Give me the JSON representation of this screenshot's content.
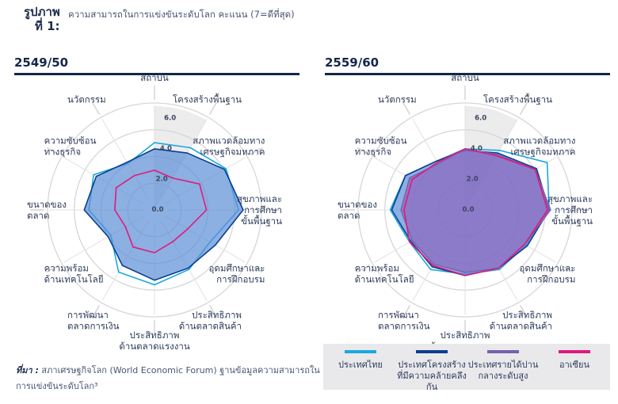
{
  "figure": {
    "label_line1": "รูปภาพ",
    "label_line2": "ที่ 1:",
    "caption": "ความสามารถในการแข่งขันระดับโลก  คะแนน (7=ดีที่สุด)"
  },
  "source": {
    "prefix": "ที่มา :",
    "text": "สภาเศรษฐกิจโลก (World Economic Forum)  ฐานข้อมูลความสามารถในการแข่งขันระดับโลก³"
  },
  "legend": [
    {
      "name": "ประเทศไทย",
      "color": "#1aa8e0"
    },
    {
      "name": "ประเทศโครงสร้างที่มีความคล้ายคลึงกัน",
      "color": "#0b3f8f"
    },
    {
      "name": "ประเทศรายได้ปานกลางระดับสูง",
      "color": "#7a5fb0"
    },
    {
      "name": "อาเซียน",
      "color": "#e0197d"
    }
  ],
  "chart_data": [
    {
      "type": "radar",
      "title": "2549/50",
      "axes": [
        "สถาบัน",
        "โครงสร้างพื้นฐาน",
        "สภาพแวดล้อมทางเศรษฐกิจมหภาค",
        "สุขภาพและการศึกษาขั้นพื้นฐาน",
        "อุดมศึกษาและการฝึกอบรม",
        "ประสิทธิภาพด้านตลาดสินค้า",
        "ประสิทธิภาพด้านตลาดแรงงาน",
        "การพัฒนาตลาดการเงิน",
        "ความพร้อมด้านเทคโนโลยี",
        "ขนาดของตลาด",
        "ความซับซ้อนทางธุรกิจ",
        "นวัตกรรม"
      ],
      "axis_labels": [
        [
          "สถาบัน"
        ],
        [
          "โครงสร้างพื้นฐาน"
        ],
        [
          "สภาพแวดล้อมทาง",
          "เศรษฐกิจมหภาค"
        ],
        [
          "สุขภาพและ",
          "การศึกษา",
          "ขั้นพื้นฐาน"
        ],
        [
          "อุดมศึกษาและ",
          "การฝึกอบรม"
        ],
        [
          "ประสิทธิภาพ",
          "ด้านตลาดสินค้า"
        ],
        [
          "ประสิทธิภาพ",
          "ด้านตลาดแรงงาน"
        ],
        [
          "การพัฒนา",
          "ตลาดการเงิน"
        ],
        [
          "ความพร้อม",
          "ด้านเทคโนโลยี"
        ],
        [
          "ขนาดของ",
          "ตลาด"
        ],
        [
          "ความซับซ้อน",
          "ทางธุรกิจ"
        ],
        [
          "นวัตกรรม"
        ]
      ],
      "rlim": [
        0,
        7
      ],
      "ticks": [
        0,
        2,
        4,
        6
      ],
      "tick_labels": [
        "0.0",
        "2.0",
        "4.0",
        "6.0"
      ],
      "highlight_sector": true,
      "series": [
        {
          "name": "ประเทศไทย",
          "values": [
            4.4,
            4.7,
            5.4,
            5.5,
            4.2,
            4.5,
            4.9,
            4.7,
            3.3,
            4.3,
            4.6,
            3.5
          ]
        },
        {
          "name": "ประเทศโครงสร้างที่มีความคล้ายคลึงกัน",
          "values": [
            4.0,
            4.3,
            5.3,
            5.8,
            4.6,
            4.4,
            4.6,
            4.2,
            3.5,
            4.6,
            4.4,
            3.6
          ]
        },
        {
          "name": "อาเซียน",
          "values": [
            2.6,
            2.4,
            3.4,
            3.4,
            2.5,
            2.4,
            2.8,
            2.8,
            2.2,
            2.6,
            2.9,
            2.6
          ]
        }
      ]
    },
    {
      "type": "radar",
      "title": "2559/60",
      "axes": [
        "สถาบัน",
        "โครงสร้างพื้นฐาน",
        "สภาพแวดล้อมทางเศรษฐกิจมหภาค",
        "สุขภาพและการศึกษาขั้นพื้นฐาน",
        "อุดมศึกษาและการฝึกอบรม",
        "ประสิทธิภาพด้านตลาดสินค้า",
        "ประสิทธิภาพด้านตลาดแรงงาน",
        "การพัฒนาตลาดการเงิน",
        "ความพร้อมด้านเทคโนโลยี",
        "ขนาดของตลาด",
        "ความซับซ้อนทางธุรกิจ",
        "นวัตกรรม"
      ],
      "axis_labels": [
        [
          "สถาบัน"
        ],
        [
          "โครงสร้างพื้นฐาน"
        ],
        [
          "สภาพแวดล้อมทาง",
          "เศรษฐกิจมหภาค"
        ],
        [
          "สุขภาพและ",
          "การศึกษา",
          "ขั้นพื้นฐาน"
        ],
        [
          "อุดมศึกษาและ",
          "การฝึกอบรม"
        ],
        [
          "ประสิทธิภาพ",
          "ด้านตลาดสินค้า"
        ],
        [
          "ประสิทธิภาพ",
          "ด้านตลาดแรงงาน"
        ],
        [
          "การพัฒนา",
          "ตลาดการเงิน"
        ],
        [
          "ความพร้อม",
          "ด้านเทคโนโลยี"
        ],
        [
          "ขนาดของ",
          "ตลาด"
        ],
        [
          "ความซับซ้อน",
          "ทางธุรกิจ"
        ],
        [
          "นวัตกรรม"
        ]
      ],
      "rlim": [
        0,
        7
      ],
      "ticks": [
        0,
        2,
        4,
        6
      ],
      "tick_labels": [
        "0.0",
        "2.0",
        "4.0",
        "6.0"
      ],
      "highlight_sector": true,
      "series": [
        {
          "name": "ประเทศไทย",
          "values": [
            4.0,
            4.5,
            6.2,
            5.5,
            4.6,
            4.5,
            4.2,
            4.5,
            4.2,
            4.9,
            4.5,
            3.7
          ]
        },
        {
          "name": "ประเทศโครงสร้างที่มีความคล้ายคลึงกัน",
          "values": [
            3.9,
            4.3,
            5.4,
            5.5,
            4.7,
            4.4,
            4.3,
            4.3,
            4.1,
            4.8,
            4.5,
            3.7
          ]
        },
        {
          "name": "ประเทศรายได้ปานกลางระดับสูง",
          "values": [
            4.0,
            4.2,
            5.3,
            5.6,
            4.5,
            4.4,
            4.1,
            4.1,
            4.0,
            4.2,
            4.2,
            3.5
          ]
        },
        {
          "name": "อาเซียน",
          "values": [
            4.0,
            4.1,
            5.3,
            5.4,
            4.5,
            4.4,
            4.3,
            4.2,
            4.2,
            4.0,
            4.0,
            3.6
          ]
        }
      ]
    }
  ]
}
